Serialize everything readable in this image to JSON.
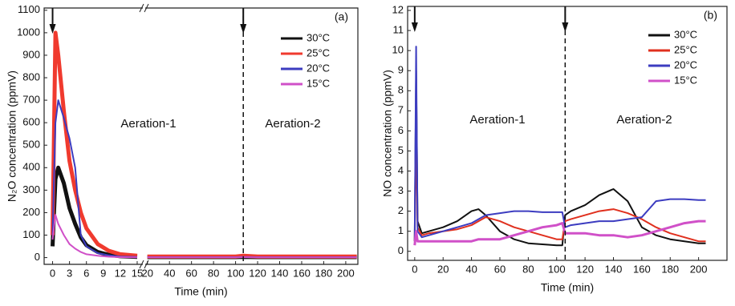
{
  "chart_data": [
    {
      "type": "line",
      "label": "(a)",
      "y_label": "N₂O concentration (ppmV)",
      "x_label": "Time (min)",
      "annotations": [
        "Aeration-1",
        "Aeration-2"
      ],
      "xlim": [
        -1.5,
        211
      ],
      "xbreak": [
        16,
        18
      ],
      "xticks": [
        0,
        3,
        6,
        9,
        12,
        15,
        20,
        40,
        60,
        80,
        100,
        120,
        140,
        160,
        180,
        200
      ],
      "ylim": [
        -30,
        1110
      ],
      "yticks": [
        0,
        100,
        200,
        300,
        400,
        500,
        600,
        700,
        800,
        900,
        1000,
        1100
      ],
      "arrows_x": [
        0,
        107
      ],
      "x": [
        0,
        0.5,
        1,
        2,
        3,
        4,
        5,
        6,
        8,
        10,
        12,
        15,
        20,
        40,
        60,
        80,
        100,
        107,
        120,
        140,
        160,
        180,
        200,
        210
      ],
      "series": [
        {
          "name": "30°C",
          "color": "#111111",
          "width": 5,
          "values": [
            50,
            350,
            400,
            330,
            220,
            150,
            90,
            55,
            25,
            12,
            6,
            3,
            2,
            2,
            2,
            2,
            2,
            3,
            2,
            2,
            2,
            2,
            2,
            2
          ]
        },
        {
          "name": "25°C",
          "color": "#f03a2e",
          "width": 5,
          "values": [
            100,
            1000,
            900,
            650,
            430,
            300,
            200,
            130,
            60,
            30,
            15,
            8,
            5,
            5,
            5,
            5,
            5,
            8,
            5,
            5,
            5,
            5,
            5,
            5
          ]
        },
        {
          "name": "20°C",
          "color": "#3c3cc0",
          "width": 2,
          "values": [
            100,
            600,
            700,
            620,
            530,
            400,
            100,
            50,
            20,
            10,
            5,
            3,
            2,
            2,
            2,
            2,
            2,
            3,
            2,
            2,
            2,
            2,
            2,
            2
          ]
        },
        {
          "name": "15°C",
          "color": "#d050c8",
          "width": 2,
          "values": [
            80,
            190,
            150,
            100,
            60,
            40,
            25,
            15,
            8,
            4,
            2,
            1,
            1,
            1,
            1,
            1,
            1,
            2,
            1,
            1,
            1,
            1,
            1,
            1
          ]
        }
      ]
    },
    {
      "type": "line",
      "label": "(b)",
      "y_label": "NO concentration (ppmV)",
      "x_label": "Time (min)",
      "annotations": [
        "Aeration-1",
        "Aeration-2"
      ],
      "xlim": [
        -5,
        220
      ],
      "xticks": [
        0,
        20,
        40,
        60,
        80,
        100,
        120,
        140,
        160,
        180,
        200
      ],
      "ylim": [
        -0.45,
        12.2
      ],
      "yticks": [
        0,
        1,
        2,
        3,
        4,
        5,
        6,
        7,
        8,
        9,
        10,
        11,
        12
      ],
      "arrows_x": [
        0,
        106
      ],
      "x": [
        0,
        1,
        2,
        5,
        10,
        20,
        30,
        40,
        45,
        50,
        60,
        70,
        80,
        90,
        100,
        104,
        106,
        110,
        120,
        130,
        140,
        150,
        160,
        170,
        180,
        190,
        200,
        205
      ],
      "series": [
        {
          "name": "30°C",
          "color": "#111111",
          "width": 2,
          "values": [
            0.5,
            9,
            1.5,
            0.9,
            1,
            1.2,
            1.5,
            2,
            2.1,
            1.8,
            1,
            0.6,
            0.4,
            0.35,
            0.3,
            0.3,
            1.8,
            2,
            2.3,
            2.8,
            3.1,
            2.5,
            1.2,
            0.8,
            0.6,
            0.5,
            0.4,
            0.4
          ]
        },
        {
          "name": "25°C",
          "color": "#e0301e",
          "width": 2,
          "values": [
            0.5,
            6,
            1.2,
            0.8,
            0.9,
            1,
            1.1,
            1.3,
            1.5,
            1.7,
            1.5,
            1.2,
            1,
            0.8,
            0.6,
            0.6,
            1.5,
            1.6,
            1.8,
            2,
            2.1,
            1.9,
            1.6,
            1.2,
            0.9,
            0.7,
            0.5,
            0.5
          ]
        },
        {
          "name": "20°C",
          "color": "#3c3cc0",
          "width": 2,
          "values": [
            0.5,
            10.2,
            1,
            0.7,
            0.8,
            1,
            1.2,
            1.4,
            1.6,
            1.8,
            1.9,
            2,
            2,
            1.95,
            1.95,
            1.95,
            1.2,
            1.3,
            1.4,
            1.5,
            1.5,
            1.6,
            1.7,
            2.5,
            2.6,
            2.6,
            2.55,
            2.55
          ]
        },
        {
          "name": "15°C",
          "color": "#d050c8",
          "width": 3,
          "values": [
            0.3,
            1,
            0.5,
            0.5,
            0.5,
            0.5,
            0.5,
            0.5,
            0.6,
            0.6,
            0.6,
            0.8,
            1,
            1.2,
            1.3,
            1.4,
            0.9,
            0.9,
            0.9,
            0.8,
            0.8,
            0.7,
            0.8,
            1,
            1.2,
            1.4,
            1.5,
            1.5
          ]
        }
      ]
    }
  ]
}
